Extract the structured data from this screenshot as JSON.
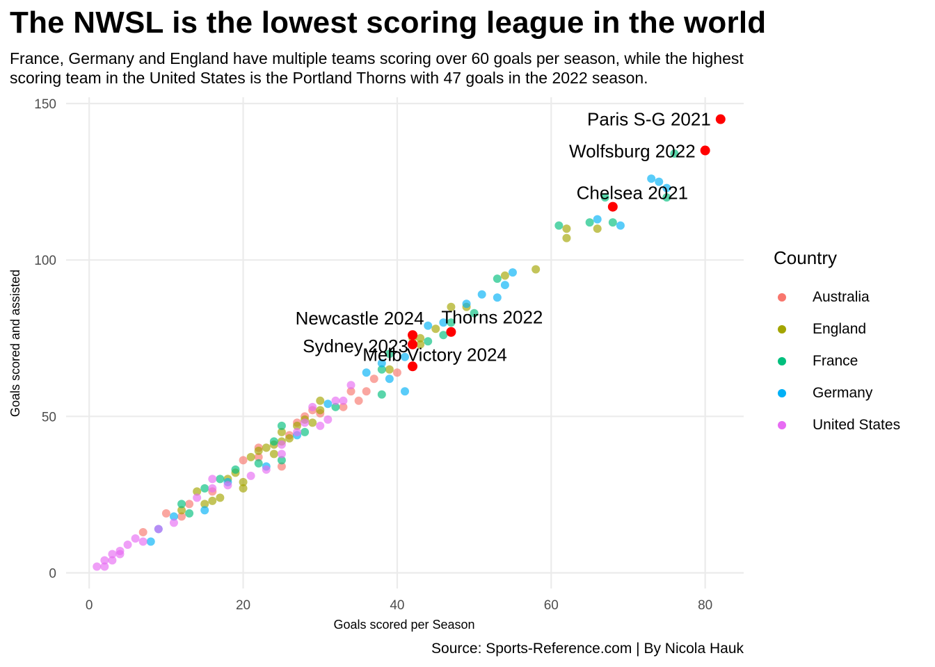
{
  "header": {
    "title": "The NWSL is the lowest scoring league in the world",
    "subtitle_line1": "France, Germany and England have multiple teams scoring over 60 goals per season, while the highest",
    "subtitle_line2": "scoring team in the United States is the Portland Thorns with 47 goals in the 2022 season."
  },
  "caption": "Source: Sports-Reference.com | By Nicola Hauk",
  "legend": {
    "title": "Country",
    "items": [
      {
        "label": "Australia",
        "color": "#F8766D"
      },
      {
        "label": "England",
        "color": "#A3A500"
      },
      {
        "label": "France",
        "color": "#00BF7D"
      },
      {
        "label": "Germany",
        "color": "#00B0F6"
      },
      {
        "label": "United States",
        "color": "#E76BF3"
      }
    ]
  },
  "chart_data": {
    "type": "scatter",
    "title": "The NWSL is the lowest scoring league in the world",
    "xlabel": "Goals scored per Season",
    "ylabel": "Goals scored and assisted",
    "xlim": [
      -3,
      85
    ],
    "ylim": [
      -5,
      152
    ],
    "xticks": [
      0,
      20,
      40,
      60,
      80
    ],
    "yticks": [
      0,
      50,
      100,
      150
    ],
    "grid": true,
    "legend_position": "right",
    "highlight_color": "#FF0000",
    "series": [
      {
        "name": "Australia",
        "color": "#F8766D",
        "x": [
          7,
          10,
          12,
          13,
          16,
          20,
          22,
          22,
          25,
          26,
          27,
          28,
          29,
          30,
          33,
          34,
          35,
          36,
          37,
          40
        ],
        "y": [
          13,
          19,
          18,
          22,
          26,
          36,
          40,
          37,
          34,
          44,
          48,
          50,
          52,
          51,
          53,
          58,
          55,
          58,
          62,
          64
        ]
      },
      {
        "name": "England",
        "color": "#A3A500",
        "x": [
          12,
          14,
          15,
          16,
          17,
          18,
          19,
          20,
          20,
          21,
          22,
          23,
          24,
          24,
          25,
          25,
          26,
          27,
          28,
          29,
          30,
          30,
          39,
          42,
          43,
          43,
          45,
          47,
          49,
          54,
          58,
          62,
          62,
          66
        ],
        "y": [
          20,
          26,
          22,
          23,
          24,
          30,
          32,
          27,
          29,
          37,
          39,
          40,
          38,
          41,
          42,
          45,
          43,
          47,
          49,
          48,
          52,
          55,
          65,
          75,
          73,
          75,
          78,
          85,
          85,
          95,
          97,
          107,
          110,
          110
        ]
      },
      {
        "name": "France",
        "color": "#00BF7D",
        "x": [
          12,
          13,
          15,
          17,
          19,
          22,
          24,
          25,
          25,
          28,
          32,
          38,
          38,
          39,
          44,
          46,
          47,
          50,
          53,
          61,
          65,
          67,
          68,
          75,
          76
        ],
        "y": [
          22,
          19,
          27,
          30,
          33,
          35,
          42,
          47,
          36,
          45,
          53,
          57,
          65,
          70,
          74,
          76,
          80,
          83,
          94,
          111,
          112,
          120,
          112,
          120,
          134
        ]
      },
      {
        "name": "Germany",
        "color": "#00B0F6",
        "x": [
          8,
          9,
          11,
          15,
          18,
          23,
          27,
          31,
          36,
          38,
          39,
          41,
          41,
          44,
          46,
          49,
          51,
          53,
          54,
          55,
          66,
          69,
          73,
          74,
          75
        ],
        "y": [
          10,
          14,
          18,
          20,
          29,
          34,
          44,
          54,
          64,
          67,
          62,
          58,
          69,
          79,
          80,
          86,
          89,
          88,
          92,
          96,
          113,
          111,
          126,
          125,
          123
        ]
      },
      {
        "name": "United States",
        "color": "#E76BF3",
        "x": [
          1,
          2,
          2,
          3,
          3,
          4,
          4,
          5,
          6,
          7,
          9,
          11,
          14,
          16,
          16,
          18,
          21,
          23,
          25,
          25,
          27,
          28,
          29,
          30,
          31,
          32,
          33,
          34
        ],
        "y": [
          2,
          2,
          4,
          4,
          6,
          6,
          7,
          9,
          11,
          10,
          14,
          16,
          24,
          27,
          30,
          28,
          31,
          33,
          38,
          41,
          45,
          48,
          53,
          47,
          49,
          55,
          55,
          60
        ]
      }
    ],
    "highlighted": [
      {
        "label": "Paris S-G 2021",
        "x": 82,
        "y": 145
      },
      {
        "label": "Wolfsburg 2022",
        "x": 80,
        "y": 135
      },
      {
        "label": "Chelsea 2021",
        "x": 68,
        "y": 117
      },
      {
        "label": "Newcastle 2024",
        "x": 42,
        "y": 76
      },
      {
        "label": "Thorns 2022",
        "x": 47,
        "y": 77
      },
      {
        "label": "Sydney 2023",
        "x": 42,
        "y": 73
      },
      {
        "label": "Melb Victory 2024",
        "x": 42,
        "y": 66
      }
    ]
  }
}
